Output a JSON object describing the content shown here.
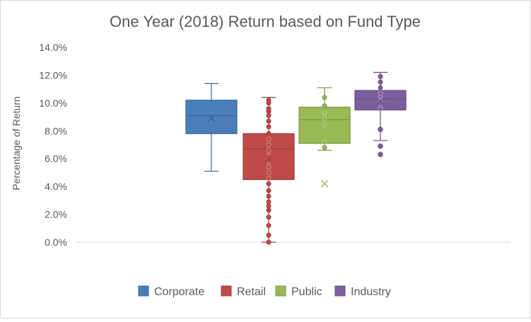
{
  "chart_data": {
    "type": "box",
    "title": "One Year (2018) Return based on Fund Type",
    "xlabel": "",
    "ylabel": "Percentage of Return",
    "ylim": [
      0,
      14
    ],
    "y_ticks": [
      "0.0%",
      "2.0%",
      "4.0%",
      "6.0%",
      "8.0%",
      "10.0%",
      "12.0%",
      "14.0%"
    ],
    "grid": false,
    "legend_position": "bottom",
    "categories": [],
    "series": [
      {
        "name": "Corporate",
        "color": "#4a7ebb",
        "whisker_low": 5.1,
        "q1": 7.8,
        "median": 9.1,
        "q3": 10.2,
        "whisker_high": 11.4,
        "mean": 8.9,
        "inner_points": [],
        "outliers": []
      },
      {
        "name": "Retail",
        "color": "#be4b48",
        "whisker_low": 0.0,
        "q1": 4.5,
        "median": 6.7,
        "q3": 7.8,
        "whisker_high": 10.4,
        "mean": 6.0,
        "inner_points": [
          0.0,
          0.5,
          1.2,
          1.8,
          2.3,
          2.6,
          2.9,
          3.3,
          3.7,
          4.2,
          4.6,
          5.0,
          5.4,
          5.8,
          6.2,
          6.6,
          7.0,
          7.4,
          7.8,
          8.3,
          8.7,
          9.1,
          9.4,
          9.6,
          10.0,
          10.2
        ],
        "outliers": []
      },
      {
        "name": "Public",
        "color": "#98b954",
        "whisker_low": 6.6,
        "q1": 7.1,
        "median": 8.8,
        "q3": 9.7,
        "whisker_high": 11.1,
        "mean": 4.2,
        "inner_points": [
          6.8,
          7.2,
          8.4,
          8.9,
          9.3,
          9.8,
          10.4
        ],
        "outliers": []
      },
      {
        "name": "Industry",
        "color": "#7d5fa0",
        "whisker_low": 7.3,
        "q1": 9.5,
        "median": 10.3,
        "q3": 10.9,
        "whisker_high": 12.2,
        "mean": 10.1,
        "inner_points": [
          9.6,
          9.9,
          10.2,
          10.4,
          10.7,
          11.1,
          11.5,
          11.9
        ],
        "outliers": [
          6.3,
          6.9,
          8.1
        ]
      }
    ]
  }
}
